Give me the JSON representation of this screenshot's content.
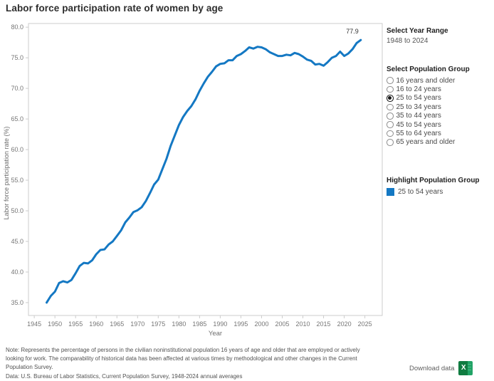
{
  "title": "Labor force participation rate of women by age",
  "chart_data": {
    "type": "line",
    "title": "Labor force participation rate of women by age",
    "xlabel": "Year",
    "ylabel": "Labor force participation rate (%)",
    "grid": false,
    "legend_position": "right-sidebar",
    "line_color": "#1478c3",
    "end_label": "77.9",
    "x_ticks": [
      1945,
      1950,
      1955,
      1960,
      1965,
      1970,
      1975,
      1980,
      1985,
      1990,
      1995,
      2000,
      2005,
      2010,
      2015,
      2020,
      2025
    ],
    "y_tick_labels": [
      "35.0",
      "40.0",
      "45.0",
      "50.0",
      "55.0",
      "60.0",
      "65.0",
      "70.0",
      "75.0",
      "80.0"
    ],
    "xlim": [
      1943.6,
      2029.2
    ],
    "ylim": [
      32.9,
      80.6
    ],
    "x": [
      1948,
      1949,
      1950,
      1951,
      1952,
      1953,
      1954,
      1955,
      1956,
      1957,
      1958,
      1959,
      1960,
      1961,
      1962,
      1963,
      1964,
      1965,
      1966,
      1967,
      1968,
      1969,
      1970,
      1971,
      1972,
      1973,
      1974,
      1975,
      1976,
      1977,
      1978,
      1979,
      1980,
      1981,
      1982,
      1983,
      1984,
      1985,
      1986,
      1987,
      1988,
      1989,
      1990,
      1991,
      1992,
      1993,
      1994,
      1995,
      1996,
      1997,
      1998,
      1999,
      2000,
      2001,
      2002,
      2003,
      2004,
      2005,
      2006,
      2007,
      2008,
      2009,
      2010,
      2011,
      2012,
      2013,
      2014,
      2015,
      2016,
      2017,
      2018,
      2019,
      2020,
      2021,
      2022,
      2023,
      2024
    ],
    "series": [
      {
        "name": "25 to 54 years",
        "values": [
          35.0,
          36.1,
          36.8,
          38.2,
          38.5,
          38.3,
          38.7,
          39.8,
          41.0,
          41.5,
          41.4,
          41.9,
          42.9,
          43.6,
          43.7,
          44.5,
          45.0,
          45.9,
          46.8,
          48.1,
          48.9,
          49.8,
          50.1,
          50.6,
          51.6,
          52.9,
          54.3,
          55.1,
          56.8,
          58.5,
          60.6,
          62.3,
          64.0,
          65.3,
          66.3,
          67.1,
          68.2,
          69.6,
          70.8,
          71.9,
          72.7,
          73.6,
          74.0,
          74.1,
          74.6,
          74.6,
          75.3,
          75.6,
          76.1,
          76.7,
          76.5,
          76.8,
          76.7,
          76.4,
          75.9,
          75.6,
          75.3,
          75.3,
          75.5,
          75.4,
          75.8,
          75.6,
          75.2,
          74.7,
          74.5,
          73.9,
          74.0,
          73.7,
          74.3,
          75.0,
          75.3,
          76.0,
          75.3,
          75.7,
          76.4,
          77.4,
          77.9
        ]
      }
    ]
  },
  "sidebar": {
    "year_range": {
      "label": "Select Year Range",
      "value": "1948 to 2024"
    },
    "population_group": {
      "label": "Select Population Group",
      "options": [
        {
          "label": "16 years and older",
          "selected": false
        },
        {
          "label": "16 to 24 years",
          "selected": false
        },
        {
          "label": "25 to 54 years",
          "selected": true
        },
        {
          "label": "25 to 34 years",
          "selected": false
        },
        {
          "label": "35 to 44 years",
          "selected": false
        },
        {
          "label": "45 to 54 years",
          "selected": false
        },
        {
          "label": "55 to 64 years",
          "selected": false
        },
        {
          "label": "65 years and older",
          "selected": false
        }
      ]
    },
    "highlight_group": {
      "label": "Highlight Population Group",
      "items": [
        {
          "label": "25 to 54 years",
          "color": "#1478c3"
        }
      ]
    }
  },
  "footer": {
    "note": "Note: Represents the percentage of persons in the civilian noninstitutional population 16 years of age and older that are employed or actively looking for work. The comparability of historical data has been affected at various times by methodological and other changes in the Current Population Survey.",
    "data_source": "Data: U.S. Bureau of Labor Statistics,  Current Population Survey, 1948-2024 annual averages",
    "download_label": "Download data"
  },
  "colors": {
    "accent_blue": "#1478c3",
    "excel_green_dark": "#107c41",
    "excel_green_light": "#21a366",
    "axis_border": "#cccccc",
    "tick_text": "#767676"
  }
}
